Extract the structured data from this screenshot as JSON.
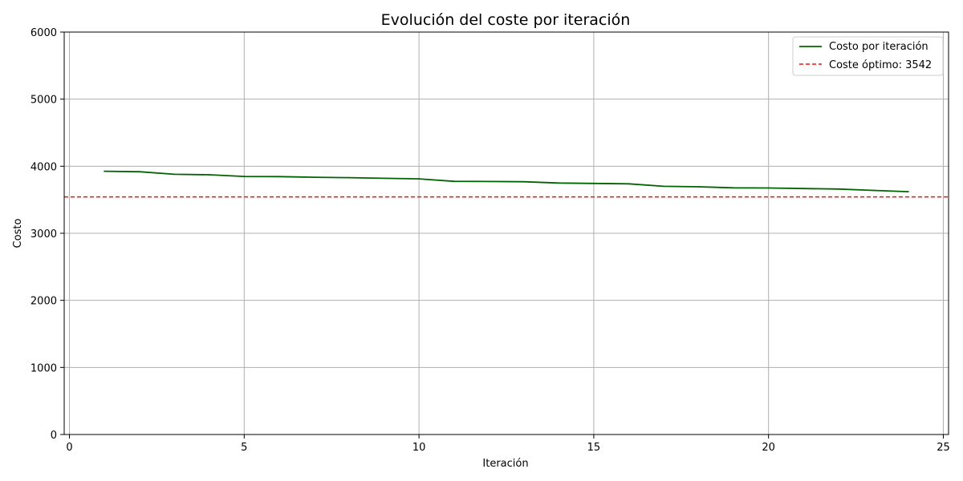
{
  "chart_data": {
    "type": "line",
    "title": "Evolución del coste por iteración",
    "xlabel": "Iteración",
    "ylabel": "Costo",
    "xlim": [
      -0.15,
      25.15
    ],
    "ylim": [
      0,
      6000
    ],
    "x_ticks": [
      0,
      5,
      10,
      15,
      20,
      25
    ],
    "y_ticks": [
      0,
      1000,
      2000,
      3000,
      4000,
      5000,
      6000
    ],
    "grid": true,
    "legend_position": "top-right",
    "series": [
      {
        "name": "Costo por iteración",
        "color": "#006400",
        "style": "solid",
        "x": [
          1,
          2,
          3,
          4,
          5,
          6,
          7,
          8,
          9,
          10,
          11,
          12,
          13,
          14,
          15,
          16,
          17,
          18,
          19,
          20,
          21,
          22,
          23,
          24
        ],
        "y": [
          3925,
          3918,
          3880,
          3872,
          3848,
          3845,
          3835,
          3830,
          3820,
          3812,
          3775,
          3772,
          3768,
          3750,
          3743,
          3737,
          3700,
          3693,
          3678,
          3675,
          3667,
          3660,
          3640,
          3620
        ]
      }
    ],
    "reference_lines": [
      {
        "name": "Coste óptimo: 3542",
        "value": 3542,
        "orientation": "horizontal",
        "color": "#e31a1c",
        "style": "dashed"
      }
    ]
  }
}
